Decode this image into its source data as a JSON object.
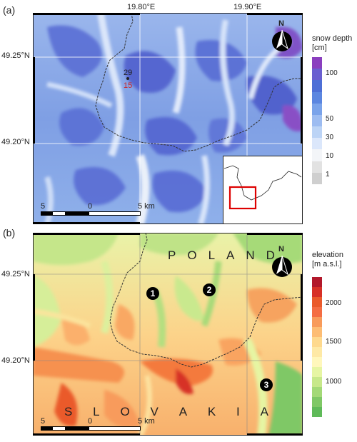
{
  "panel_a": {
    "letter": "(a)",
    "lon_ticks": [
      "19.80°E",
      "19.90°E"
    ],
    "lat_ticks": [
      "49.25°N",
      "49.20°N"
    ],
    "legend": {
      "title": "snow depth",
      "unit": "[cm]",
      "labels": [
        "100",
        "50",
        "30",
        "10",
        "1"
      ],
      "colors": [
        "#8b3fbf",
        "#6a5fd0",
        "#4d6fd6",
        "#5b86e0",
        "#7aa3ea",
        "#9dbcf1",
        "#bcd4f6",
        "#dbe7fb",
        "#f3f5f8",
        "#e2e2e2",
        "#cfcfcf"
      ]
    },
    "station": {
      "top": "29",
      "bottom": "15",
      "top_color": "#222222",
      "bottom_color": "#cc2222"
    },
    "scalebar": {
      "left": "5",
      "mid": "0",
      "right": "5 km"
    },
    "north": "N",
    "inset_box_color": "#dd0000"
  },
  "panel_b": {
    "letter": "(b)",
    "lon_ticks": [
      "19.80°E",
      "19.90°E"
    ],
    "lat_ticks": [
      "49.25°N",
      "49.20°N"
    ],
    "legend": {
      "title": "elevation",
      "unit": "[m a.s.l.]",
      "labels": [
        "2000",
        "1500",
        "1000"
      ],
      "colors": [
        "#b2182b",
        "#d73027",
        "#ea5a2b",
        "#f46d43",
        "#f89b5b",
        "#fdbd74",
        "#fed98e",
        "#fee9a6",
        "#fff7bc",
        "#e6f5a3",
        "#c7e88a",
        "#a3d977",
        "#7fc866",
        "#5fba59"
      ]
    },
    "country_north": [
      "P",
      "O",
      "L",
      "A",
      "N",
      "D"
    ],
    "country_south": [
      "S",
      "L",
      "O",
      "V",
      "A",
      "K",
      "I",
      "A"
    ],
    "markers": [
      "1",
      "2",
      "3"
    ],
    "scalebar": {
      "left": "5",
      "mid": "0",
      "right": "5 km"
    },
    "north": "N"
  }
}
